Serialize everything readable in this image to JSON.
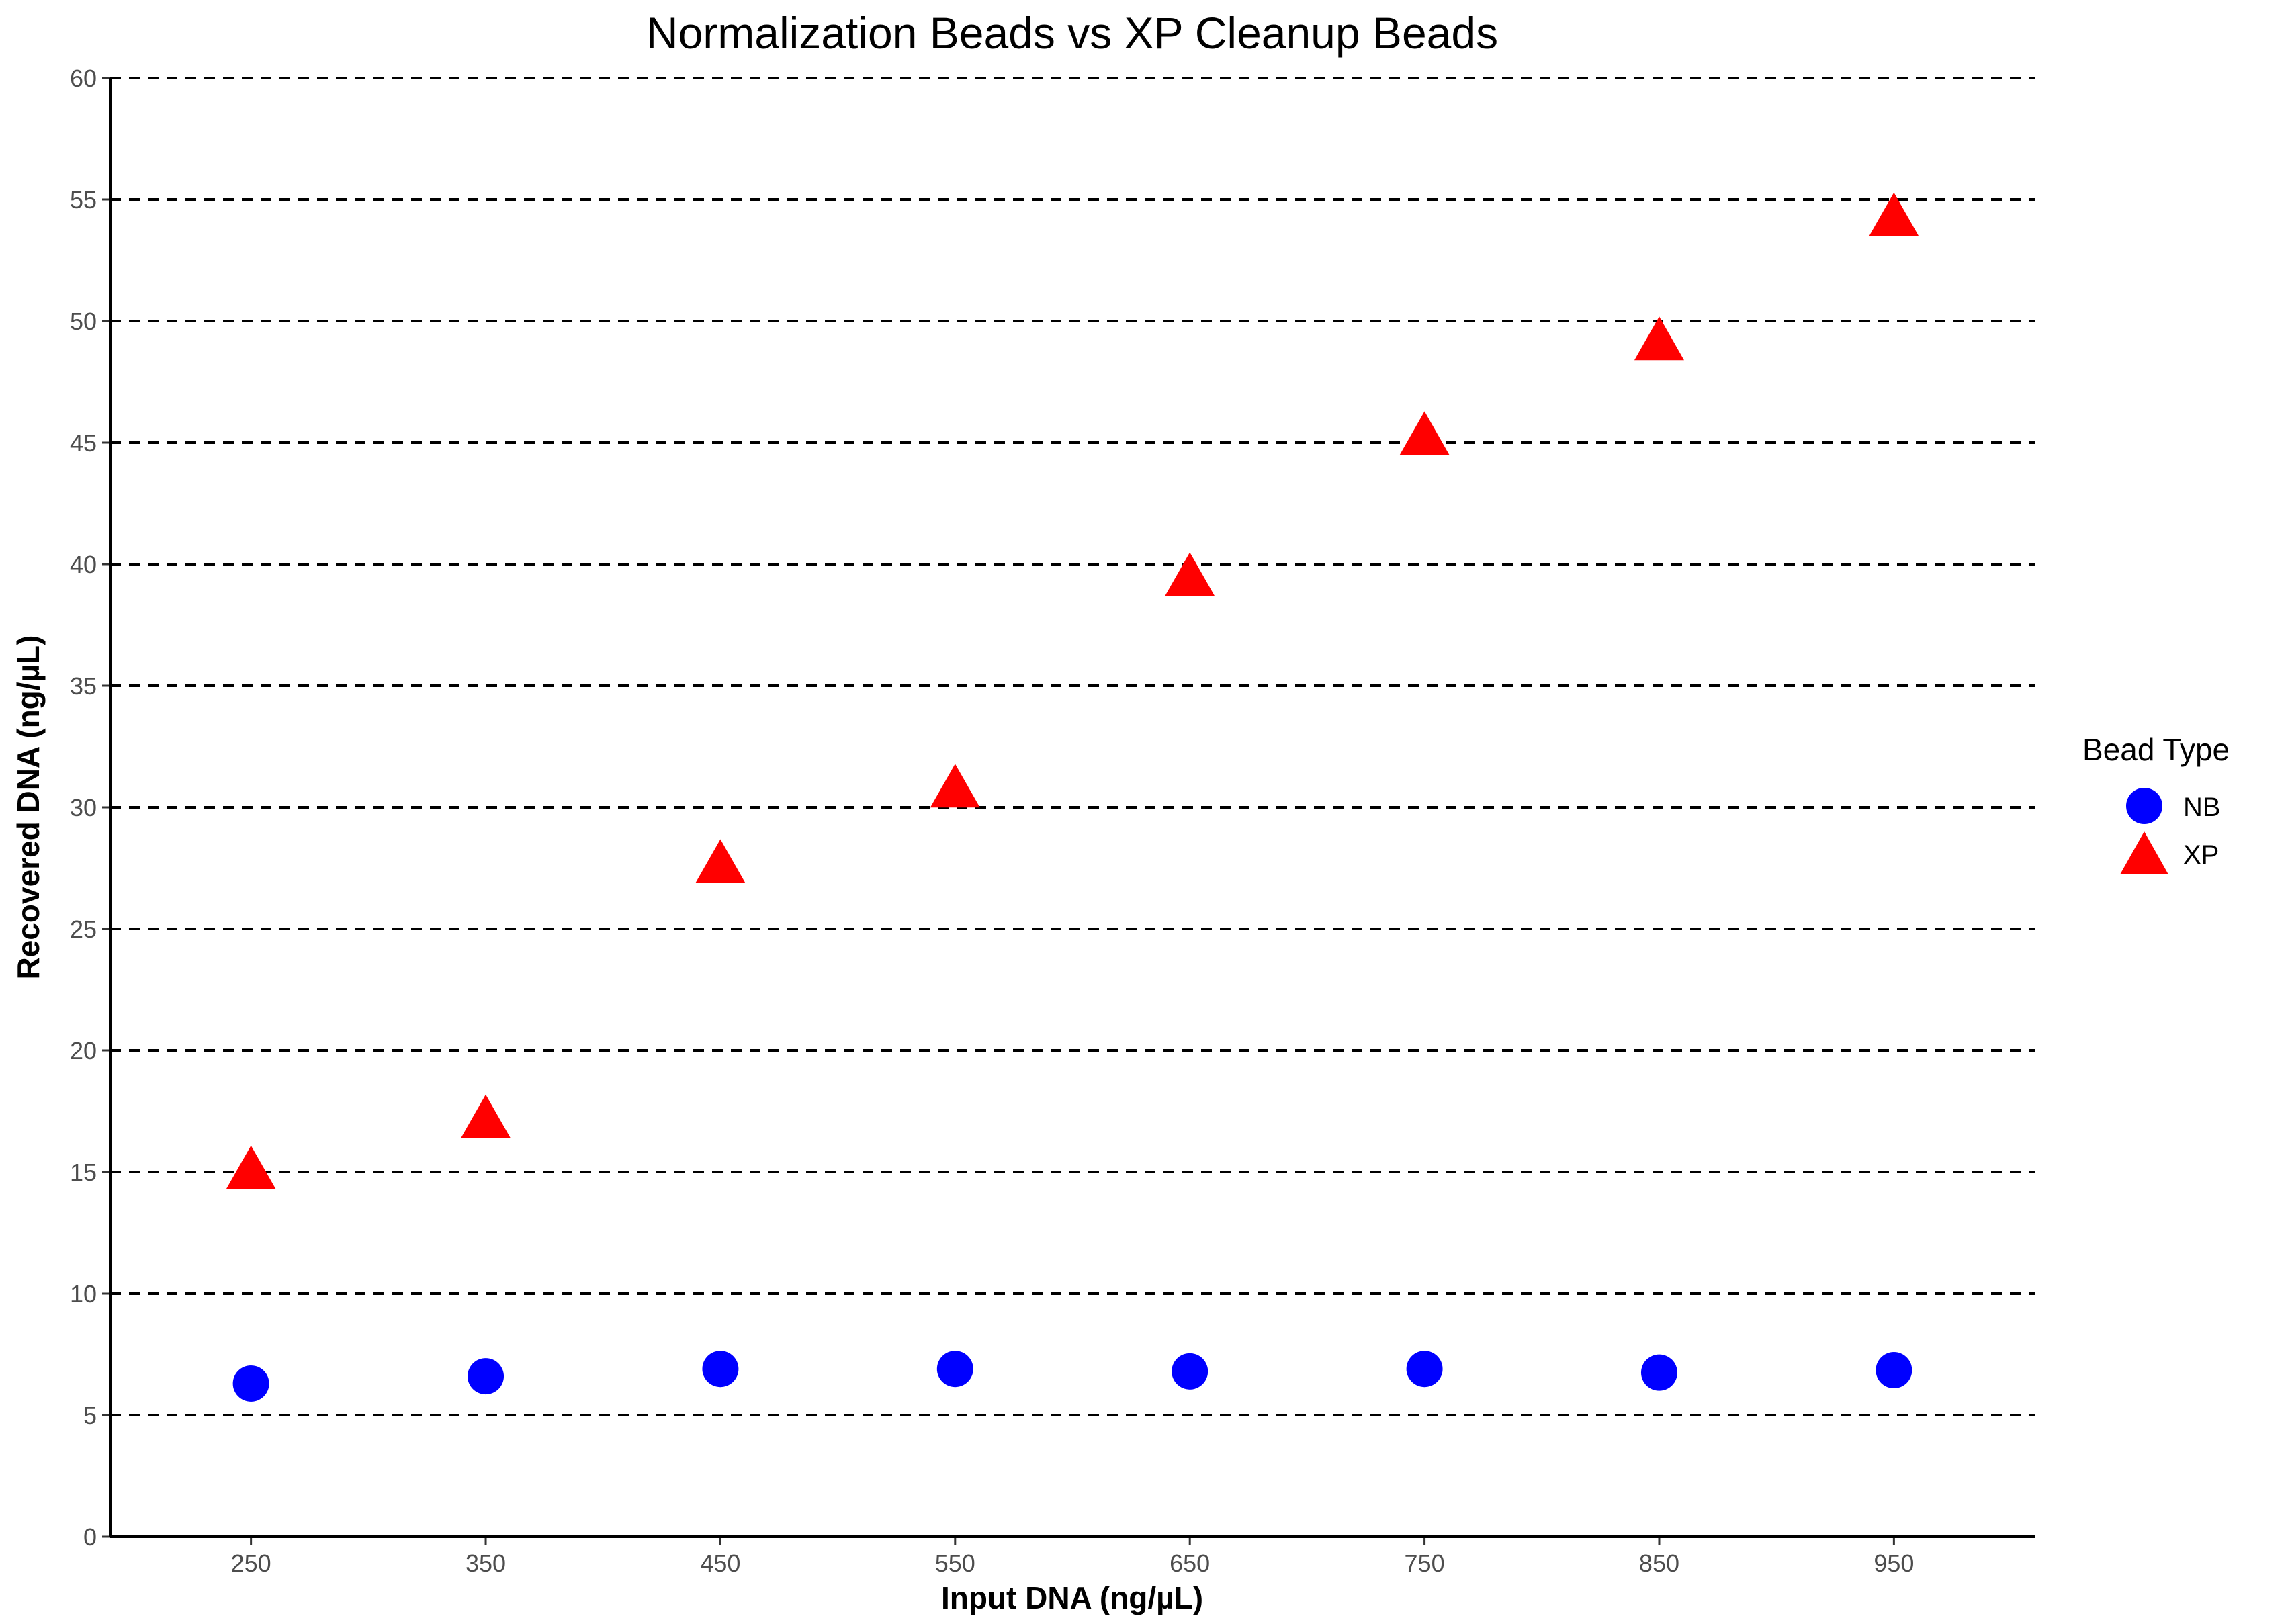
{
  "chart_data": {
    "type": "scatter",
    "title": "Normalization Beads vs XP Cleanup Beads",
    "xlabel": "Input DNA (ng/µL)",
    "ylabel": "Recovered DNA (ng/µL)",
    "xlim": [
      190,
      1010
    ],
    "ylim": [
      0,
      60
    ],
    "x_ticks": [
      250,
      350,
      450,
      550,
      650,
      750,
      850,
      950
    ],
    "y_ticks": [
      0,
      5,
      10,
      15,
      20,
      25,
      30,
      35,
      40,
      45,
      50,
      55,
      60
    ],
    "grid": "horizontal dashed",
    "legend": {
      "title": "Bead Type",
      "placement": "right"
    },
    "x": [
      250,
      350,
      450,
      550,
      650,
      750,
      850,
      950
    ],
    "series": [
      {
        "name": "NB",
        "marker": "circle",
        "color": "#0000ff",
        "values": [
          6.3,
          6.6,
          6.9,
          6.9,
          6.8,
          6.9,
          6.75,
          6.85
        ]
      },
      {
        "name": "XP",
        "marker": "triangle",
        "color": "#ff0000",
        "values": [
          14.9,
          17.0,
          27.5,
          30.6,
          39.3,
          45.1,
          49.0,
          54.1
        ]
      }
    ]
  }
}
